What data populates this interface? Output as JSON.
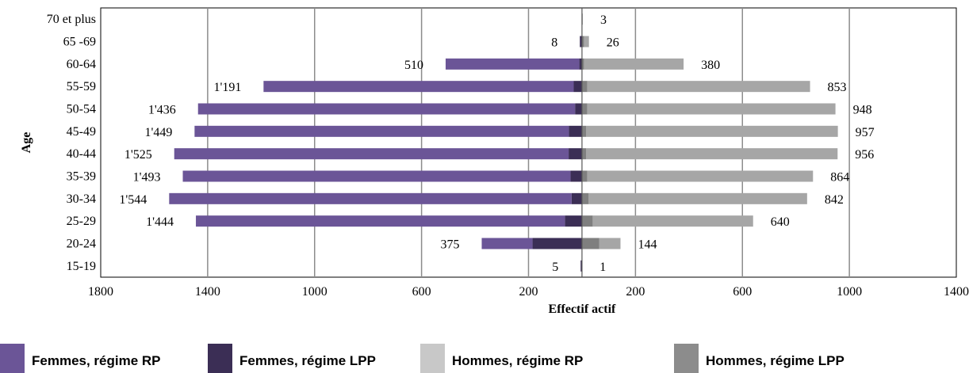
{
  "chart_data": {
    "type": "bar",
    "orientation": "horizontal",
    "subtype": "population-pyramid",
    "xlabel": "Effectif actif",
    "ylabel": "Age",
    "xlim": [
      -1800,
      1400
    ],
    "x_ticks": [
      -1800,
      -1400,
      -1000,
      -600,
      -200,
      200,
      600,
      1000,
      1400
    ],
    "x_tick_labels": [
      "1800",
      "1400",
      "1000",
      "600",
      "200",
      "200",
      "600",
      "1000",
      "1400"
    ],
    "grid": true,
    "legend_position": "bottom",
    "categories": [
      "70 et plus",
      "65 -69",
      "60-64",
      "55-59",
      "50-54",
      "45-49",
      "40-44",
      "35-39",
      "30-34",
      "25-29",
      "20-24",
      "15-19"
    ],
    "series": [
      {
        "name": "Femmes, régime RP",
        "color": "#6b5597",
        "side": "left",
        "values": [
          0,
          0,
          500,
          1160,
          1410,
          1400,
          1475,
          1450,
          1505,
          1380,
          190,
          0
        ]
      },
      {
        "name": "Femmes, régime LPP",
        "color": "#3b2e55",
        "side": "left",
        "values": [
          0,
          8,
          10,
          31,
          26,
          49,
          50,
          43,
          39,
          64,
          185,
          5
        ]
      },
      {
        "name": "Hommes, régime RP",
        "color": "#a6a6a6",
        "side": "right",
        "values": [
          3,
          18,
          372,
          833,
          928,
          942,
          941,
          844,
          817,
          600,
          80,
          0
        ]
      },
      {
        "name": "Hommes, régime LPP",
        "color": "#7f7f7f",
        "side": "right",
        "values": [
          0,
          8,
          8,
          20,
          20,
          15,
          15,
          20,
          25,
          40,
          64,
          1
        ]
      }
    ],
    "data_labels": {
      "femmes_total": [
        "",
        "8",
        "510",
        "1'191",
        "1'436",
        "1'449",
        "1'525",
        "1'493",
        "1'544",
        "1'444",
        "375",
        "5"
      ],
      "hommes_total": [
        "3",
        "26",
        "380",
        "853",
        "948",
        "957",
        "956",
        "864",
        "842",
        "640",
        "144",
        "1"
      ]
    }
  },
  "legend": [
    {
      "name": "Femmes, régime RP",
      "color": "#6b5597"
    },
    {
      "name": "Femmes, régime LPP",
      "color": "#3b2e55"
    },
    {
      "name": "Hommes, régime RP",
      "color": "#c8c8c8"
    },
    {
      "name": "Hommes, régime LPP",
      "color": "#8c8c8c"
    }
  ]
}
